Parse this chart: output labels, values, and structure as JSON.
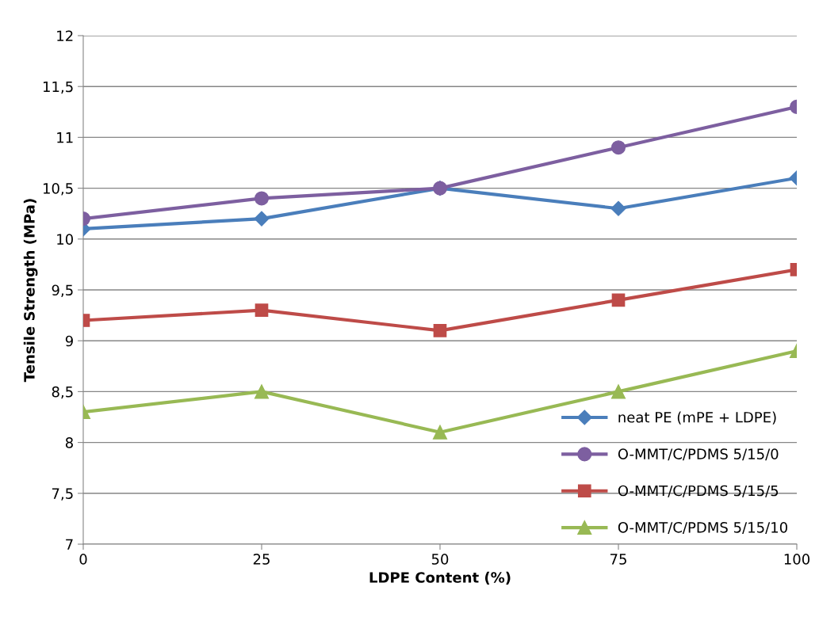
{
  "chart_data": {
    "type": "line",
    "xlabel": "LDPE Content (%)",
    "ylabel": "Tensile Strength (MPa)",
    "x": [
      0,
      25,
      50,
      75,
      100
    ],
    "xlim": [
      0,
      100
    ],
    "xticks": [
      0,
      25,
      50,
      75,
      100
    ],
    "ylim": [
      7,
      12
    ],
    "yticks": [
      7,
      {
        "value": 7.5,
        "label": "7,5"
      },
      8,
      {
        "value": 8.5,
        "label": "8,5"
      },
      9,
      {
        "value": 9.5,
        "label": "9,5"
      },
      10,
      {
        "value": 10.5,
        "label": "10,5"
      },
      11,
      {
        "value": 11.5,
        "label": "11,5"
      },
      12
    ],
    "grid": "y",
    "legend": "bottom right",
    "line_style": "solid",
    "series": [
      {
        "name": "neat PE (mPE + LDPE)",
        "color": "#4a7ebb",
        "marker": "diamond",
        "values": [
          10.1,
          10.2,
          10.5,
          10.3,
          10.6
        ]
      },
      {
        "name": "O-MMT/C/PDMS 5/15/0",
        "color": "#7d5fa0",
        "marker": "circle",
        "values": [
          10.2,
          10.4,
          10.5,
          10.9,
          11.3
        ]
      },
      {
        "name": "O-MMT/C/PDMS 5/15/5",
        "color": "#be4b48",
        "marker": "square",
        "values": [
          9.2,
          9.3,
          9.1,
          9.4,
          9.7
        ]
      },
      {
        "name": "O-MMT/C/PDMS 5/15/10",
        "color": "#98b954",
        "marker": "triangle",
        "values": [
          8.3,
          8.5,
          8.1,
          8.5,
          8.9
        ]
      }
    ]
  }
}
